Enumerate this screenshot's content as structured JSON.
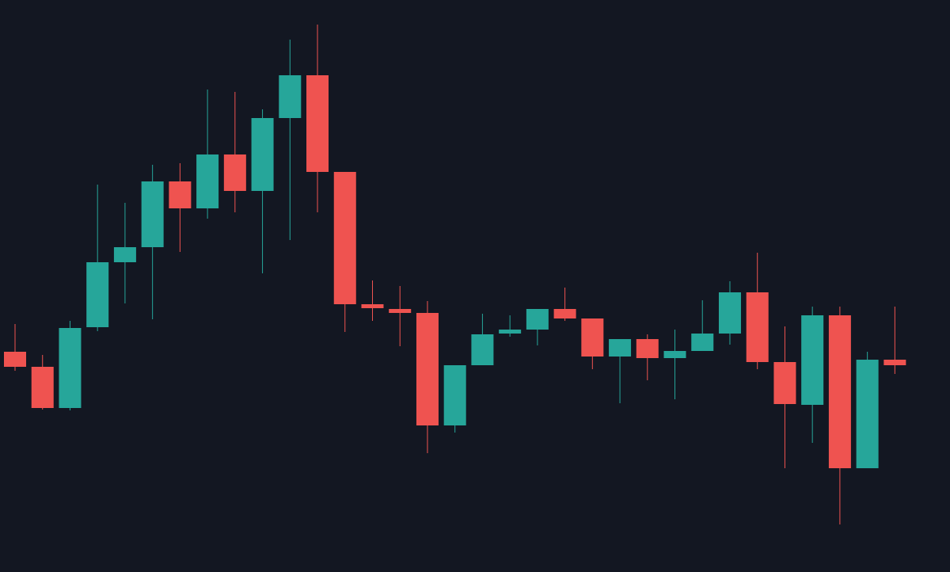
{
  "chart_data": {
    "type": "candlestick",
    "open": [
      278,
      259,
      207,
      309,
      391,
      410,
      493,
      459,
      527,
      481,
      573,
      627,
      505,
      338,
      332,
      327,
      185,
      261,
      301,
      306,
      332,
      320,
      272,
      294,
      270,
      279,
      301,
      353,
      265,
      211,
      324,
      131,
      268
    ],
    "high": [
      313,
      274,
      317,
      489,
      466,
      514,
      516,
      609,
      606,
      584,
      672,
      691,
      505,
      368,
      361,
      342,
      261,
      326,
      324,
      332,
      359,
      320,
      294,
      300,
      306,
      343,
      367,
      403,
      310,
      335,
      335,
      278,
      335
    ],
    "low": [
      254,
      205,
      204,
      304,
      339,
      319,
      404,
      446,
      454,
      377,
      419,
      454,
      303,
      317,
      285,
      150,
      176,
      261,
      297,
      286,
      317,
      256,
      213,
      242,
      218,
      279,
      287,
      256,
      131,
      163,
      60,
      131,
      250
    ],
    "close": [
      259,
      207,
      308,
      391,
      410,
      493,
      459,
      527,
      481,
      573,
      627,
      505,
      338,
      333,
      327,
      185,
      261,
      300,
      306,
      332,
      320,
      272,
      294,
      270,
      279,
      301,
      353,
      265,
      212,
      324,
      131,
      268,
      261
    ],
    "up_color": "#26a69a",
    "down_color": "#ef5350",
    "background": "#131722",
    "ylim": [
      0,
      722
    ]
  }
}
